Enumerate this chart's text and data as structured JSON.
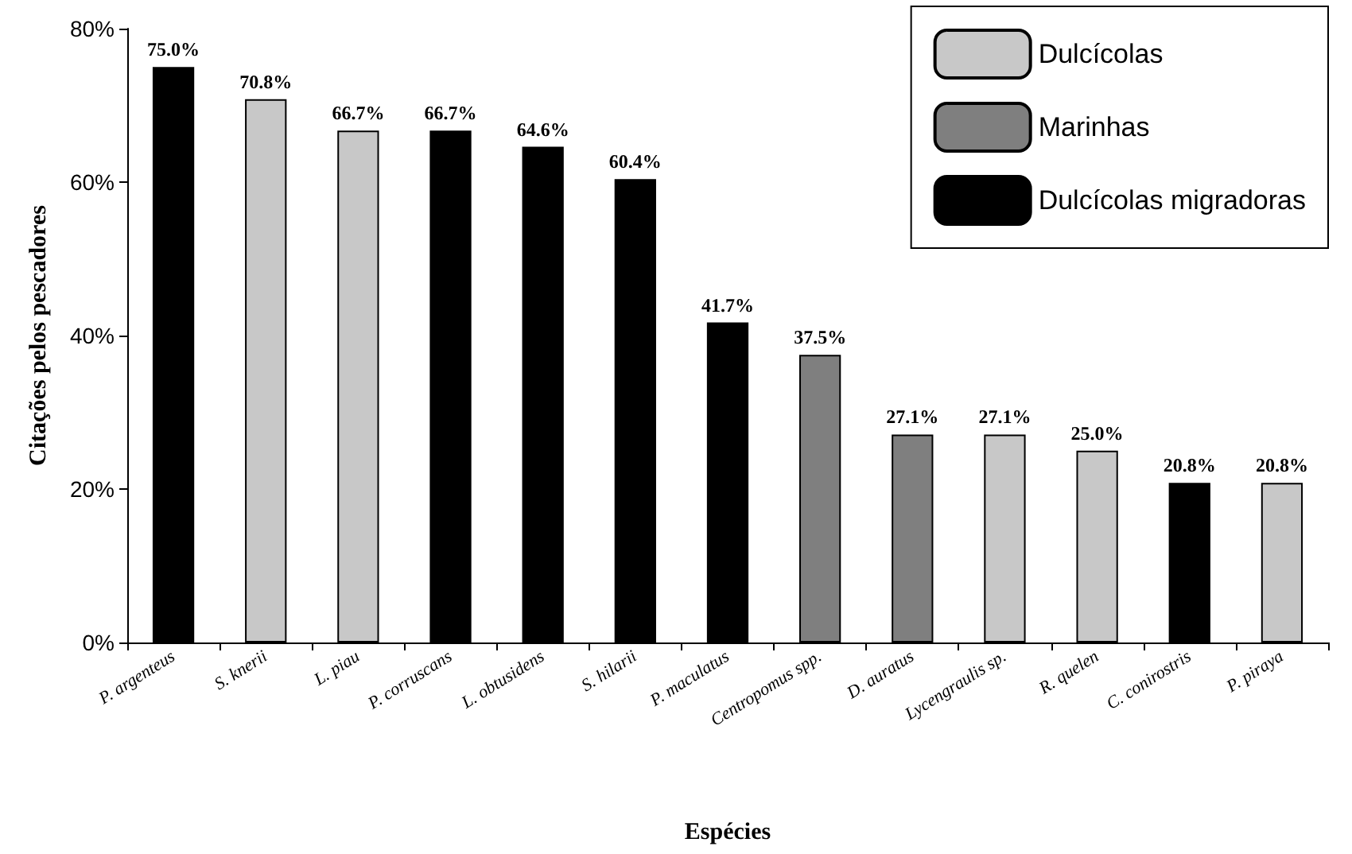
{
  "chart_data": {
    "type": "bar",
    "xlabel": "Espécies",
    "ylabel": "Citações pelos pescadores",
    "categories": [
      "P. argenteus",
      "S. knerii",
      "L. piau",
      "P. corruscans",
      "L. obtusidens",
      "S. hilarii",
      "P. maculatus",
      "Centropomus spp.",
      "D. auratus",
      "Lycengraulis sp.",
      "R. quelen",
      "C. conirostris",
      "P. piraya"
    ],
    "stacked": true,
    "series": [
      {
        "name": "Dulcícolas",
        "color": "#c8c8c8",
        "values": [
          null,
          70.8,
          66.7,
          null,
          null,
          null,
          null,
          null,
          null,
          27.1,
          25.0,
          null,
          20.8
        ],
        "value_labels": [
          null,
          "70.8%",
          "66.7%",
          null,
          null,
          null,
          null,
          null,
          null,
          "27.1%",
          "25.0%",
          null,
          "20.8%"
        ]
      },
      {
        "name": "Marinhas",
        "color": "#7f7f7f",
        "values": [
          null,
          null,
          null,
          null,
          null,
          null,
          null,
          37.5,
          27.1,
          null,
          null,
          null,
          null
        ],
        "value_labels": [
          null,
          null,
          null,
          null,
          null,
          null,
          null,
          "37.5%",
          "27.1%",
          null,
          null,
          null,
          null
        ]
      },
      {
        "name": "Dulcícolas migradoras",
        "color": "#000000",
        "values": [
          75.0,
          null,
          null,
          66.7,
          64.6,
          60.4,
          41.7,
          null,
          null,
          null,
          null,
          20.8,
          null
        ],
        "value_labels": [
          "75.0%",
          null,
          null,
          "66.7%",
          "64.6%",
          "60.4%",
          "41.7%",
          null,
          null,
          null,
          null,
          "20.8%",
          null
        ]
      }
    ],
    "ylim": [
      0,
      80
    ],
    "yticks": [
      {
        "value": 0,
        "label": "0%"
      },
      {
        "value": 20,
        "label": "20%"
      },
      {
        "value": 40,
        "label": "40%"
      },
      {
        "value": 60,
        "label": "60%"
      },
      {
        "value": 80,
        "label": "80%"
      }
    ],
    "grid": false,
    "legend": "top right"
  }
}
